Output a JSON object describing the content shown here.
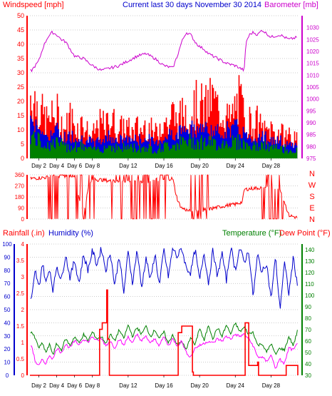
{
  "header": {
    "windspeed_label": "Windspeed [mph]",
    "title": "Current last 30 days November 30 2014",
    "barometer_label": "Barometer [mb]",
    "rainfall_label": "Rainfall (.in)",
    "humidity_label": "Humidity (%)",
    "temperature_label": "Temperature (°F)",
    "dewpoint_label": "Dew Point (°F)"
  },
  "colors": {
    "wind": "#ff0000",
    "wind_avg": "#0000dd",
    "wind_low": "#008000",
    "barometer": "#cc00cc",
    "direction": "#ff0000",
    "rain": "#ff0000",
    "humidity": "#0000cc",
    "temperature": "#008000",
    "dewpoint": "#ff00ff"
  },
  "chart_data": [
    {
      "type": "area",
      "name": "wind-barometer",
      "x_ticks": [
        "Day 2",
        "Day 4",
        "Day 6",
        "Day 8",
        "Day 12",
        "Day 16",
        "Day 20",
        "Day 24",
        "Day 28"
      ],
      "x_tick_days": [
        2,
        4,
        6,
        8,
        12,
        16,
        20,
        24,
        28
      ],
      "xlim": [
        1,
        31
      ],
      "ylim_left": [
        0,
        50
      ],
      "y_ticks_left": [
        0,
        5,
        10,
        15,
        20,
        25,
        30,
        35,
        40,
        45,
        50
      ],
      "ylim_right": [
        975,
        1035
      ],
      "y_ticks_right": [
        975,
        980,
        985,
        990,
        995,
        1000,
        1005,
        1010,
        1015,
        1020,
        1025,
        1030
      ],
      "series": [
        {
          "name": "gust",
          "x": [
            1.2,
            1.6,
            2,
            2.5,
            3,
            3.5,
            4,
            4.5,
            5,
            5.5,
            6,
            6.5,
            7,
            7.5,
            8,
            8.5,
            9,
            9.5,
            10,
            10.5,
            11,
            11.5,
            12,
            12.5,
            13,
            13.5,
            14,
            14.5,
            15,
            15.5,
            16,
            16.5,
            17,
            17.5,
            18,
            18.5,
            19,
            19.5,
            20,
            20.5,
            21,
            21.5,
            22,
            22.5,
            23,
            23.5,
            24,
            24.5,
            25,
            25.5,
            26,
            26.5,
            27,
            27.5,
            28,
            28.5,
            29,
            29.5,
            30,
            30.5,
            31
          ],
          "values": [
            33,
            30,
            26,
            22,
            19,
            21,
            24,
            18,
            15,
            22,
            17,
            16,
            19,
            13,
            11,
            16,
            18,
            16,
            21,
            18,
            14,
            17,
            15,
            13,
            16,
            14,
            18,
            15,
            12,
            17,
            21,
            16,
            24,
            18,
            22,
            26,
            23,
            27,
            29,
            25,
            28,
            31,
            26,
            24,
            22,
            19,
            27,
            30,
            22,
            20,
            17,
            19,
            15,
            13,
            16,
            12,
            14,
            11,
            13,
            10,
            9
          ]
        },
        {
          "name": "speed",
          "x": [
            1.2,
            2,
            3,
            4,
            5,
            6,
            7,
            8,
            9,
            10,
            11,
            12,
            13,
            14,
            15,
            16,
            17,
            18,
            19,
            20,
            21,
            22,
            23,
            24,
            25,
            26,
            27,
            28,
            29,
            30,
            31
          ],
          "values": [
            16,
            12,
            9,
            11,
            8,
            9,
            8,
            6,
            7,
            9,
            7,
            8,
            7,
            8,
            6,
            8,
            10,
            11,
            12,
            12,
            11,
            10,
            11,
            12,
            10,
            8,
            9,
            7,
            7,
            6,
            5
          ]
        },
        {
          "name": "barometer",
          "x": [
            1.2,
            2,
            2.5,
            3,
            3.5,
            4,
            4.5,
            5,
            5.5,
            6,
            7,
            8,
            9,
            10,
            11,
            12,
            13,
            14,
            15,
            16,
            17,
            17.5,
            18,
            18.5,
            19,
            19.5,
            20,
            20.5,
            21,
            22,
            23,
            24,
            25,
            25.2,
            25.6,
            26,
            26.5,
            27,
            28,
            29,
            30,
            31
          ],
          "values": [
            1012,
            1016,
            1022,
            1026,
            1028,
            1027,
            1025,
            1024,
            1021,
            1018,
            1017,
            1014,
            1012,
            1013,
            1014,
            1016,
            1018,
            1019,
            1017,
            1014,
            1013,
            1018,
            1024,
            1028,
            1027,
            1024,
            1022,
            1021,
            1019,
            1017,
            1015,
            1014,
            1012,
            1024,
            1027,
            1028,
            1027,
            1029,
            1026,
            1027,
            1025,
            1026
          ]
        }
      ]
    },
    {
      "type": "area",
      "name": "wind-direction",
      "xlim": [
        1,
        31
      ],
      "ylim": [
        0,
        360
      ],
      "y_ticks": [
        0,
        90,
        180,
        270,
        360
      ],
      "compass_labels": [
        "N",
        "W",
        "S",
        "E",
        "N"
      ],
      "series": [
        {
          "name": "direction",
          "x": [
            1.2,
            3,
            5,
            6,
            7,
            7.3,
            7.6,
            8,
            9,
            10,
            11,
            12,
            13,
            14,
            15,
            16,
            17,
            17.3,
            17.6,
            18,
            19,
            20,
            21,
            22,
            23,
            24,
            24.4,
            24.8,
            25,
            26,
            27,
            28,
            29,
            30,
            31
          ],
          "values": [
            330,
            340,
            350,
            350,
            20,
            150,
            280,
            320,
            320,
            310,
            305,
            315,
            310,
            300,
            320,
            325,
            330,
            220,
            140,
            90,
            60,
            70,
            80,
            95,
            110,
            120,
            130,
            140,
            240,
            250,
            255,
            250,
            250,
            30,
            10
          ]
        }
      ]
    },
    {
      "type": "line",
      "name": "rain-humidity-temperature",
      "x_ticks": [
        "Day 2",
        "Day 4",
        "Day 6",
        "Day 8",
        "Day 12",
        "Day 16",
        "Day 20",
        "Day 24",
        "Day 28"
      ],
      "x_tick_days": [
        2,
        4,
        6,
        8,
        12,
        16,
        20,
        24,
        28
      ],
      "xlim": [
        1,
        31
      ],
      "ylim_humidity": [
        0,
        100
      ],
      "y_ticks_humidity": [
        0,
        10,
        20,
        30,
        40,
        50,
        60,
        70,
        80,
        90,
        100
      ],
      "ylim_rain": [
        0,
        4
      ],
      "y_ticks_rain": [
        0,
        0.5,
        1,
        1.5,
        2,
        2.5,
        3,
        3.5,
        4
      ],
      "ylim_temp": [
        30,
        145
      ],
      "y_ticks_temp": [
        30,
        40,
        50,
        60,
        70,
        80,
        90,
        100,
        110,
        120,
        130,
        140
      ],
      "series": [
        {
          "name": "rainfall",
          "x": [
            1,
            8.7,
            8.8,
            9.1,
            9.4,
            9.6,
            9.7,
            9.9,
            10.0,
            17.5,
            17.6,
            18,
            18.6,
            19.2,
            19.3,
            25.0,
            25.1,
            25.5,
            26.0,
            26.5,
            26.6,
            29.6,
            29.7,
            31
          ],
          "values": [
            0,
            0,
            1.4,
            1.6,
            1.6,
            2.6,
            1.1,
            0,
            0,
            0,
            1.3,
            1.5,
            1.5,
            0.1,
            0,
            0,
            1.6,
            0.3,
            0.3,
            0.4,
            0,
            0,
            0.3,
            0
          ]
        },
        {
          "name": "humidity",
          "x": [
            1.2,
            1.6,
            2,
            2.4,
            2.8,
            3.2,
            3.6,
            4,
            4.5,
            5,
            5.5,
            6,
            6.5,
            7,
            7.5,
            8,
            8.5,
            9,
            9.5,
            10,
            10.5,
            11,
            11.5,
            12,
            12.5,
            13,
            13.5,
            14,
            14.5,
            15,
            15.5,
            16,
            16.5,
            17,
            17.5,
            18,
            18.5,
            19,
            19.5,
            20,
            20.5,
            21,
            21.5,
            22,
            22.5,
            23,
            23.5,
            24,
            24.5,
            25,
            25.5,
            26,
            26.5,
            27,
            27.5,
            28,
            28.5,
            29,
            29.5,
            30,
            30.5,
            31
          ],
          "values": [
            58,
            80,
            66,
            86,
            70,
            82,
            64,
            84,
            72,
            92,
            74,
            88,
            70,
            92,
            80,
            95,
            84,
            97,
            80,
            94,
            68,
            92,
            62,
            94,
            70,
            96,
            66,
            90,
            72,
            93,
            68,
            96,
            75,
            97,
            90,
            97,
            82,
            78,
            96,
            72,
            94,
            70,
            96,
            74,
            94,
            72,
            98,
            80,
            97,
            86,
            95,
            60,
            92,
            78,
            86,
            58,
            90,
            50,
            86,
            62,
            90,
            66
          ]
        },
        {
          "name": "temperature",
          "x": [
            1.2,
            1.6,
            2,
            2.4,
            2.8,
            3.2,
            3.6,
            4,
            4.5,
            5,
            5.5,
            6,
            6.5,
            7,
            7.5,
            8,
            8.5,
            9,
            9.5,
            10,
            10.5,
            11,
            11.5,
            12,
            12.5,
            13,
            13.5,
            14,
            14.5,
            15,
            15.5,
            16,
            16.5,
            17,
            17.5,
            18,
            18.5,
            19,
            19.5,
            20,
            20.5,
            21,
            21.5,
            22,
            22.5,
            23,
            23.5,
            24,
            24.5,
            25,
            25.5,
            26,
            26.5,
            27,
            27.5,
            28,
            28.5,
            29,
            29.5,
            30,
            30.5,
            31
          ],
          "values": [
            68,
            62,
            54,
            58,
            50,
            57,
            48,
            58,
            52,
            62,
            56,
            64,
            58,
            66,
            60,
            68,
            62,
            64,
            58,
            66,
            60,
            70,
            62,
            74,
            64,
            72,
            66,
            73,
            64,
            70,
            62,
            68,
            58,
            66,
            56,
            60,
            52,
            64,
            56,
            72,
            60,
            74,
            62,
            72,
            64,
            74,
            66,
            76,
            68,
            72,
            66,
            68,
            56,
            58,
            50,
            58,
            48,
            54,
            52,
            64,
            56,
            70
          ]
        },
        {
          "name": "dewpoint",
          "x": [
            1.2,
            1.6,
            2,
            2.4,
            2.8,
            3.2,
            3.6,
            4,
            4.5,
            5,
            5.5,
            6,
            6.5,
            7,
            7.5,
            8,
            8.5,
            9,
            9.5,
            10,
            10.5,
            11,
            11.5,
            12,
            12.5,
            13,
            13.5,
            14,
            14.5,
            15,
            15.5,
            16,
            16.5,
            17,
            17.5,
            18,
            18.5,
            19,
            19.5,
            20,
            20.5,
            21,
            21.5,
            22,
            22.5,
            23,
            23.5,
            24,
            24.5,
            25,
            25.5,
            26,
            26.5,
            27,
            27.5,
            28,
            28.5,
            29,
            29.5,
            30,
            30.5,
            31
          ],
          "values": [
            56,
            42,
            38,
            44,
            40,
            48,
            44,
            54,
            50,
            57,
            54,
            60,
            57,
            62,
            59,
            64,
            60,
            62,
            56,
            60,
            54,
            62,
            56,
            64,
            58,
            66,
            60,
            64,
            58,
            62,
            56,
            64,
            56,
            62,
            56,
            60,
            50,
            46,
            54,
            56,
            58,
            60,
            58,
            62,
            60,
            64,
            62,
            66,
            64,
            66,
            62,
            56,
            46,
            46,
            42,
            48,
            36,
            44,
            40,
            54,
            52,
            58
          ]
        }
      ]
    }
  ]
}
